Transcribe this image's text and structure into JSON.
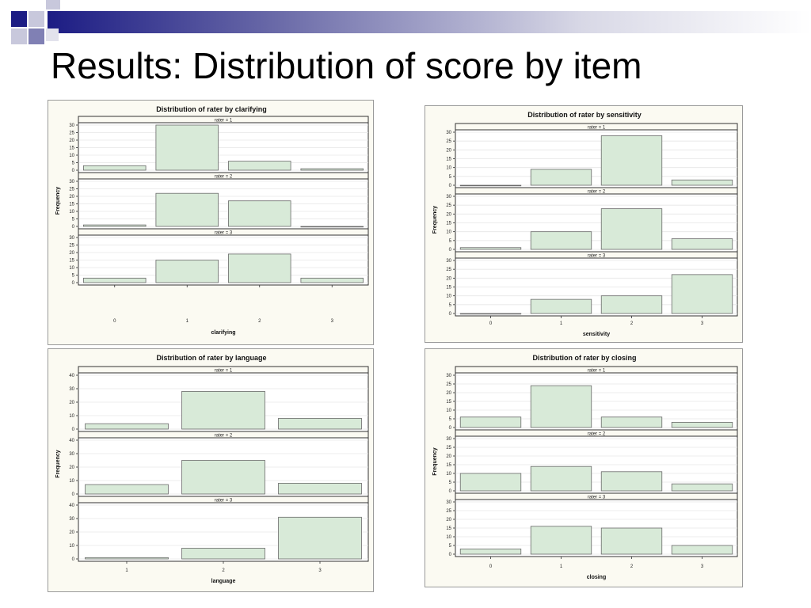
{
  "slide": {
    "title": "Results: Distribution of score by item"
  },
  "colors": {
    "bar_fill": "#d8ead8",
    "bar_stroke": "#6a6a6a",
    "panel_bg": "#fbfaf2",
    "plot_bg": "#ffffff",
    "grid": "#e6e6e6"
  },
  "chart_data": [
    {
      "type": "bar",
      "title": "Distribution of rater by clarifying",
      "xlabel": "clarifying",
      "ylabel": "Frequency",
      "categories": [
        "0",
        "1",
        "2",
        "3"
      ],
      "ylim": [
        0,
        30
      ],
      "yticks": [
        0,
        5,
        10,
        15,
        20,
        25,
        30
      ],
      "grid": true,
      "series": [
        {
          "name": "rater = 1",
          "values": [
            3,
            30,
            6,
            1
          ]
        },
        {
          "name": "rater = 2",
          "values": [
            1,
            22,
            17,
            0
          ]
        },
        {
          "name": "rater = 3",
          "values": [
            3,
            15,
            19,
            3
          ]
        }
      ]
    },
    {
      "type": "bar",
      "title": "Distribution of rater by sensitivity",
      "xlabel": "sensitivity",
      "ylabel": "Frequency",
      "categories": [
        "0",
        "1",
        "2",
        "3"
      ],
      "ylim": [
        0,
        30
      ],
      "yticks": [
        0,
        5,
        10,
        15,
        20,
        25,
        30
      ],
      "grid": true,
      "series": [
        {
          "name": "rater = 1",
          "values": [
            0,
            9,
            28,
            3
          ]
        },
        {
          "name": "rater = 2",
          "values": [
            1,
            10,
            23,
            6
          ]
        },
        {
          "name": "rater = 3",
          "values": [
            0,
            8,
            10,
            22
          ]
        }
      ]
    },
    {
      "type": "bar",
      "title": "Distribution of rater by language",
      "xlabel": "language",
      "ylabel": "Frequency",
      "categories": [
        "1",
        "2",
        "3"
      ],
      "ylim": [
        0,
        40
      ],
      "yticks": [
        0,
        10,
        20,
        30,
        40
      ],
      "grid": true,
      "series": [
        {
          "name": "rater = 1",
          "values": [
            4,
            28,
            8
          ]
        },
        {
          "name": "rater = 2",
          "values": [
            7,
            25,
            8
          ]
        },
        {
          "name": "rater = 3",
          "values": [
            1,
            8,
            31
          ]
        }
      ]
    },
    {
      "type": "bar",
      "title": "Distribution of rater by closing",
      "xlabel": "closing",
      "ylabel": "Frequency",
      "categories": [
        "0",
        "1",
        "2",
        "3"
      ],
      "ylim": [
        0,
        30
      ],
      "yticks": [
        0,
        5,
        10,
        15,
        20,
        25,
        30
      ],
      "grid": true,
      "series": [
        {
          "name": "rater = 1",
          "values": [
            6,
            24,
            6,
            3
          ]
        },
        {
          "name": "rater = 2",
          "values": [
            10,
            14,
            11,
            4
          ]
        },
        {
          "name": "rater = 3",
          "values": [
            3,
            16,
            15,
            5
          ]
        }
      ]
    }
  ]
}
